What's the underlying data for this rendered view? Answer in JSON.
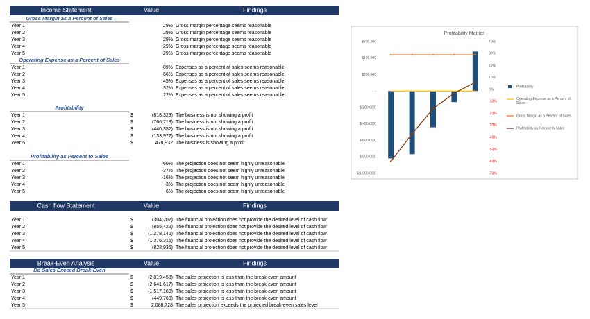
{
  "sections": [
    {
      "header": [
        "Income Statement",
        "Value",
        "Findings"
      ],
      "groups": [
        {
          "title": "Gross Margin as a Percent of Sales",
          "rows": [
            [
              "Year 1",
              "29%",
              "Gross margin percentage seems reasonable"
            ],
            [
              "Year 2",
              "29%",
              "Gross margin percentage seems reasonable"
            ],
            [
              "Year 3",
              "29%",
              "Gross margin percentage seems reasonable"
            ],
            [
              "Year 4",
              "29%",
              "Gross margin percentage seems reasonable"
            ],
            [
              "Year 5",
              "29%",
              "Gross margin percentage seems reasonable"
            ]
          ]
        },
        {
          "title": "Operating Expense as a Percent of Sales",
          "rows": [
            [
              "Year 1",
              "89%",
              "Expenses as a percent of sales seems reasonable"
            ],
            [
              "Year 2",
              "66%",
              "Expenses as a percent of sales seems reasonable"
            ],
            [
              "Year 3",
              "45%",
              "Expenses as a percent of sales seems reasonable"
            ],
            [
              "Year 4",
              "32%",
              "Expenses as a percent of sales seems reasonable"
            ],
            [
              "Year 5",
              "22%",
              "Expenses as a percent of sales seems reasonable"
            ]
          ]
        },
        {
          "title": "Profitability",
          "rows": [
            [
              "Year 1",
              "$",
              "(818,329)",
              "The business is not showing a profit"
            ],
            [
              "Year 2",
              "$",
              "(766,713)",
              "The business is not showing a profit"
            ],
            [
              "Year 3",
              "$",
              "(440,352)",
              "The business is not showing a profit"
            ],
            [
              "Year 4",
              "$",
              "(133,972)",
              "The business is not showing a profit"
            ],
            [
              "Year 5",
              "$",
              "478,932",
              "The business is showing a profit"
            ]
          ]
        },
        {
          "title": "Profitability as Percent to Sales",
          "rows": [
            [
              "Year 1",
              "-60%",
              "The projection does not seem highly unreasonable"
            ],
            [
              "Year 2",
              "-37%",
              "The projection does not seem highly unreasonable"
            ],
            [
              "Year 3",
              "-16%",
              "The projection does not seem highly unreasonable"
            ],
            [
              "Year 4",
              "-3%",
              "The projection does not seem highly unreasonable"
            ],
            [
              "Year 5",
              "6%",
              "The projection does not seem highly unreasonable"
            ]
          ]
        }
      ]
    },
    {
      "header": [
        "Cash flow Statement",
        "Value",
        "Findings"
      ],
      "groups": [
        {
          "rows": [
            [
              "Year 1",
              "$",
              "(304,207)",
              "The financial projection does not provide the desired level of cash flow"
            ],
            [
              "Year 2",
              "$",
              "(855,422)",
              "The financial projection does not provide the desired level of cash flow"
            ],
            [
              "Year 3",
              "$",
              "(1,278,146)",
              "The financial projection does not provide the desired level of cash flow"
            ],
            [
              "Year 4",
              "$",
              "(1,376,316)",
              "The financial projection does not provide the desired level of cash flow"
            ],
            [
              "Year 5",
              "$",
              "(828,936)",
              "The financial projection does not provide the desired level of cash flow"
            ]
          ]
        }
      ]
    },
    {
      "header": [
        "Break-Even Analysis",
        "Value",
        "Findings"
      ],
      "groups": [
        {
          "title": "Do Sales Exceed Break-Even",
          "rows": [
            [
              "Year 1",
              "$",
              "(2,819,453)",
              "The sales projection is less than the break-even amount"
            ],
            [
              "Year 2",
              "$",
              "(2,641,617)",
              "The sales projection is less than the break-even amount"
            ],
            [
              "Year 3",
              "$",
              "(1,517,180)",
              "The sales projection is less than the break-even amount"
            ],
            [
              "Year 4",
              "$",
              "(449,760)",
              "The sales projection is less than the break-even amount"
            ],
            [
              "Year 5",
              "$",
              "2,088,728",
              "The sales projection exceeds the projected break-even sales level"
            ]
          ]
        }
      ]
    }
  ],
  "chart_data": {
    "type": "combo",
    "title": "Profitability Matrics",
    "categories": [
      null,
      null,
      null,
      null,
      null
    ],
    "series": [
      {
        "name": "Profitability",
        "type": "bar",
        "color": "#1f4e79",
        "values": [
          -818329,
          -766713,
          -440352,
          -133972,
          478932
        ]
      },
      {
        "name": "Operating Expense as a Percent of Sales",
        "type": "line",
        "color": "#ffc000",
        "values": [
          0.89,
          0.66,
          0.45,
          0.32,
          0.22
        ]
      },
      {
        "name": "Gross Margin as a Percent of Sales",
        "type": "line",
        "color": "#ed7d31",
        "axis": "y2",
        "values": [
          29,
          29,
          29,
          29,
          29
        ]
      },
      {
        "name": "Profitability as Percent to Sales",
        "type": "line",
        "color": "#843c0c",
        "axis": "y2",
        "values": [
          -60,
          -37,
          -16,
          -3,
          6
        ]
      }
    ],
    "ylim": [
      -1000000,
      600000
    ],
    "yticks": [
      {
        "value": 600000,
        "label": "$600,000"
      },
      {
        "value": 400000,
        "label": "$400,000"
      },
      {
        "value": 200000,
        "label": "$200,000"
      },
      {
        "value": 0,
        "label": "-"
      },
      {
        "value": -200000,
        "label": "$(200,000)"
      },
      {
        "value": -400000,
        "label": "$(400,000)"
      },
      {
        "value": -600000,
        "label": "$(600,000)"
      },
      {
        "value": -800000,
        "label": "$(800,000)"
      },
      {
        "value": -1000000,
        "label": "$(1,000,000)"
      }
    ],
    "y2lim": [
      -70,
      40
    ],
    "y2ticks": [
      {
        "value": 40,
        "label": "40%"
      },
      {
        "value": 30,
        "label": "30%"
      },
      {
        "value": 20,
        "label": "20%"
      },
      {
        "value": 10,
        "label": "10%"
      },
      {
        "value": 0,
        "label": "0%"
      },
      {
        "value": -10,
        "label": "-10%"
      },
      {
        "value": -20,
        "label": "-20%"
      },
      {
        "value": -30,
        "label": "-30%"
      },
      {
        "value": -40,
        "label": "-40%"
      },
      {
        "value": -50,
        "label": "-50%"
      },
      {
        "value": -60,
        "label": "-60%"
      },
      {
        "value": -70,
        "label": "-70%"
      }
    ],
    "legend": "right"
  }
}
